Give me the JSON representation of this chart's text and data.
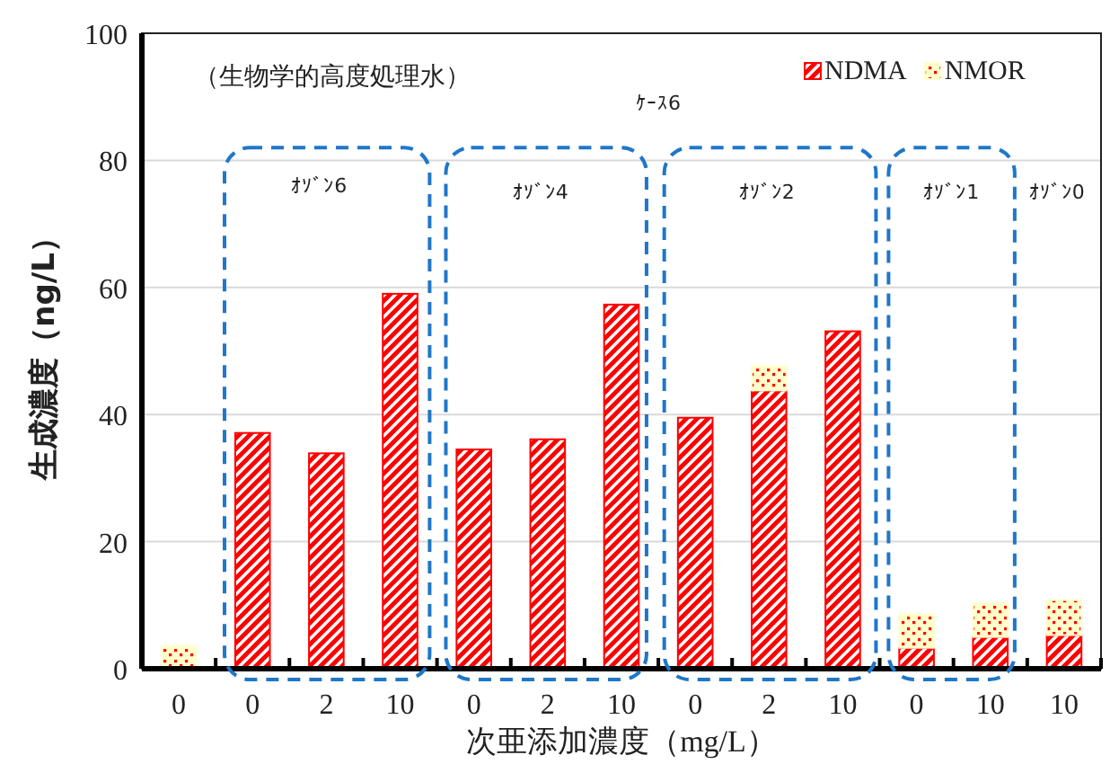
{
  "chart_data": {
    "type": "bar",
    "stacked": true,
    "xlabel": "次亜添加濃度（mg/L）",
    "ylabel": "生成濃度（ng/L）",
    "categories": [
      "0",
      "0",
      "2",
      "10",
      "0",
      "2",
      "10",
      "0",
      "2",
      "10",
      "0",
      "10",
      "10"
    ],
    "series": [
      {
        "name": "NDMA",
        "color": "#ff0000",
        "values": [
          0,
          37.1,
          33.9,
          59.0,
          34.5,
          36.1,
          57.3,
          39.5,
          43.8,
          53.1,
          3.3,
          5.0,
          5.3
        ]
      },
      {
        "name": "NMOR",
        "color": "#ffffcc",
        "values": [
          3.6,
          0,
          0,
          0,
          0,
          0,
          0,
          0,
          3.8,
          0,
          5.3,
          5.3,
          5.5
        ]
      }
    ],
    "ylim": [
      0,
      100
    ],
    "yticks": [
      0,
      20,
      40,
      60,
      80,
      100
    ],
    "grid": "y",
    "legend": "top right",
    "annotations": [
      "（生物学的高度処理水）",
      "ｹｰｽ6",
      "ｵｿﾞﾝ6",
      "ｵｿﾞﾝ4",
      "ｵｿﾞﾝ2",
      "ｵｿﾞﾝ1",
      "ｵｿﾞﾝ0"
    ]
  }
}
